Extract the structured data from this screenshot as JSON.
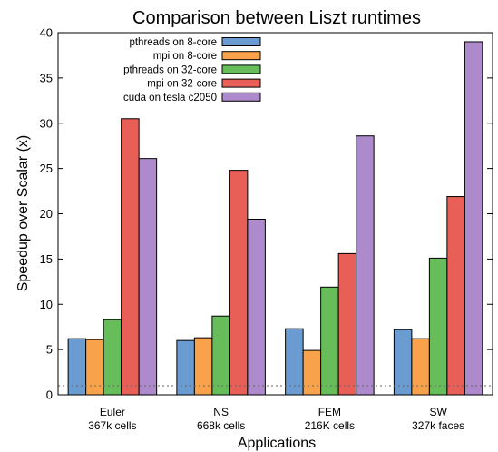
{
  "chart_data": {
    "type": "bar",
    "title": "Comparison between Liszt runtimes",
    "xlabel": "Applications",
    "ylabel": "Speedup over Scalar (x)",
    "ylim": [
      0,
      40
    ],
    "yticks": [
      0,
      5,
      10,
      15,
      20,
      25,
      30,
      35,
      40
    ],
    "grid": false,
    "legend_position": "top-left",
    "reference_line": {
      "y": 1,
      "style": "dotted"
    },
    "categories": [
      {
        "name": "Euler",
        "detail": "367k cells"
      },
      {
        "name": "NS",
        "detail": "668k cells"
      },
      {
        "name": "FEM",
        "detail": "216K cells"
      },
      {
        "name": "SW",
        "detail": "327k faces"
      }
    ],
    "series": [
      {
        "name": "pthreads on 8-core",
        "color": "#6a9bd1",
        "values": [
          6.2,
          6.0,
          7.3,
          7.2
        ]
      },
      {
        "name": "mpi on 8-core",
        "color": "#f8a24c",
        "values": [
          6.1,
          6.3,
          4.9,
          6.2
        ]
      },
      {
        "name": "pthreads on 32-core",
        "color": "#66bd5a",
        "values": [
          8.3,
          8.7,
          11.9,
          15.1
        ]
      },
      {
        "name": "mpi on 32-core",
        "color": "#e85f58",
        "values": [
          30.5,
          24.8,
          15.6,
          21.9
        ]
      },
      {
        "name": "cuda on tesla c2050",
        "color": "#ad8acb",
        "values": [
          26.1,
          19.4,
          28.6,
          39.0
        ]
      }
    ]
  }
}
